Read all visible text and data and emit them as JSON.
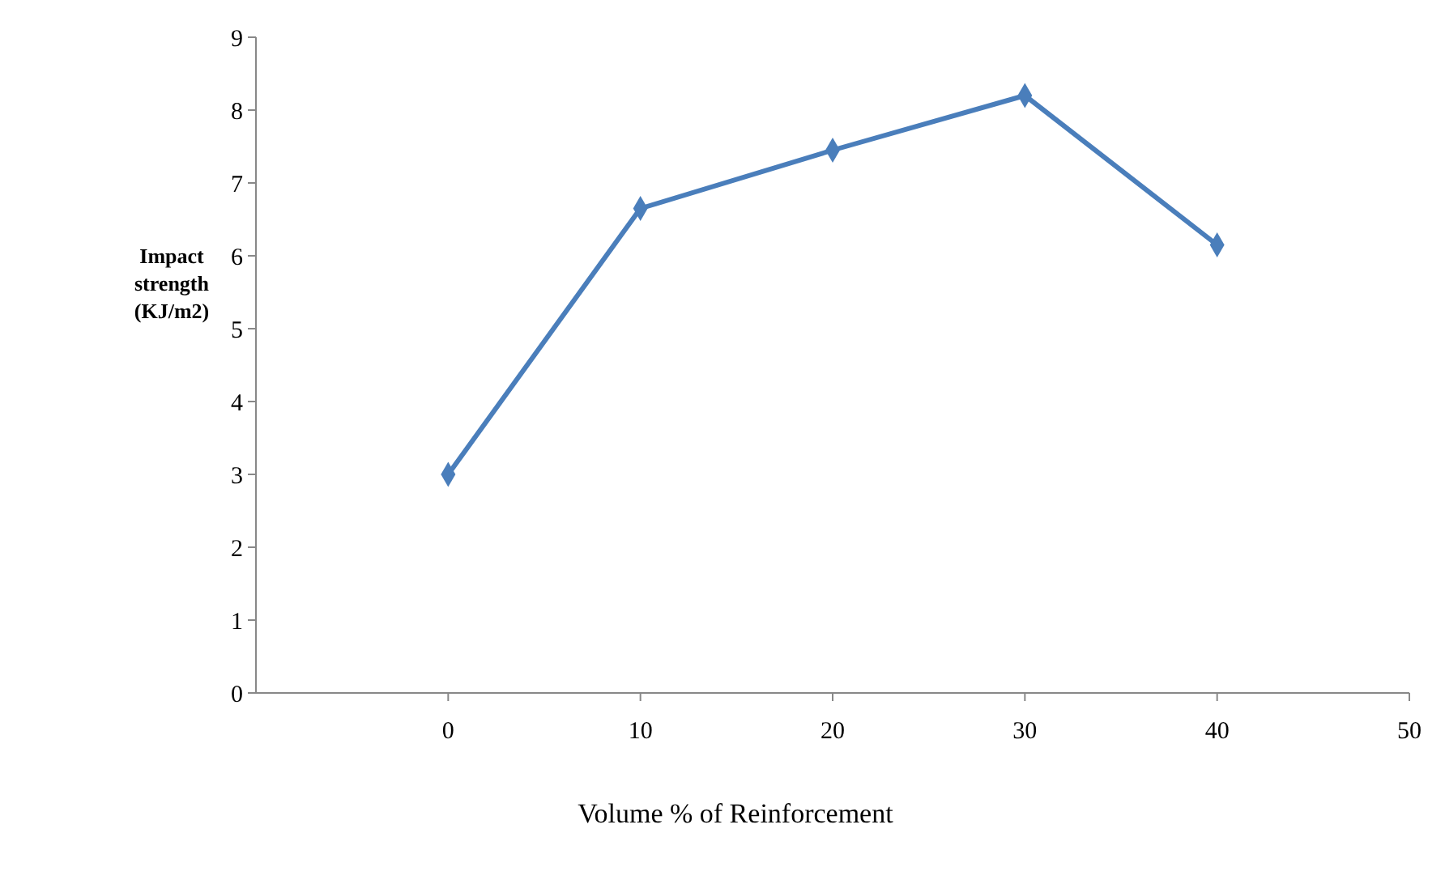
{
  "chart_data": {
    "type": "line",
    "xlabel": "Volume % of Reinforcement",
    "ylabel": "Impact strength (KJ/m2)",
    "x": [
      0,
      10,
      20,
      30,
      40
    ],
    "series": [
      {
        "color": "#4a7ebb",
        "values": [
          3.0,
          6.65,
          7.45,
          8.2,
          6.15
        ]
      }
    ],
    "xlim": [
      -10,
      50
    ],
    "xticks": [
      0,
      10,
      20,
      30,
      40,
      50
    ],
    "ylim": [
      0,
      9
    ],
    "yticks": [
      0,
      1,
      2,
      3,
      4,
      5,
      6,
      7,
      8,
      9
    ],
    "grid": false,
    "marker": "diamond",
    "line_style": "solid"
  }
}
